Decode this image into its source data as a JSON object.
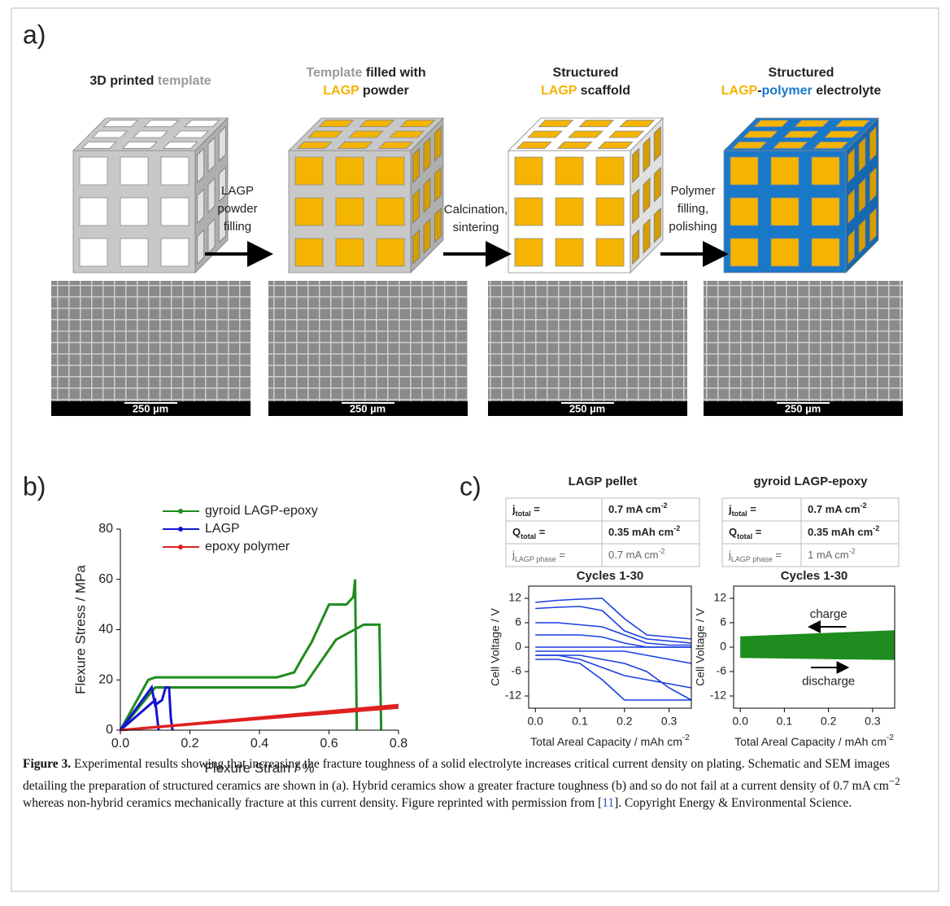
{
  "figure": {
    "panel_labels": [
      "a)",
      "b)",
      "c)"
    ],
    "steps": [
      {
        "title": [
          [
            {
              "text": "3D printed ",
              "color": "#222222"
            },
            {
              "text": "template",
              "color": "#9a9a9a"
            }
          ]
        ],
        "frame": "#c8c8c8",
        "window": "#ffffff",
        "scale_bar": "250 µm"
      },
      {
        "title": [
          [
            {
              "text": "Template",
              "color": "#9a9a9a"
            },
            {
              "text": " filled with",
              "color": "#222222"
            }
          ],
          [
            {
              "text": "LAGP",
              "color": "#f5b400"
            },
            {
              "text": " powder",
              "color": "#222222"
            }
          ]
        ],
        "frame": "#c8c8c8",
        "window": "#f5b400",
        "scale_bar": "250 µm"
      },
      {
        "title": [
          [
            {
              "text": "Structured",
              "color": "#222222"
            }
          ],
          [
            {
              "text": "LAGP",
              "color": "#f5b400"
            },
            {
              "text": " scaffold",
              "color": "#222222"
            }
          ]
        ],
        "frame": "#ffffff",
        "window": "#f5b400",
        "scale_bar": "250 µm"
      },
      {
        "title": [
          [
            {
              "text": "Structured",
              "color": "#222222"
            }
          ],
          [
            {
              "text": "LAGP",
              "color": "#f5b400"
            },
            {
              "text": "-",
              "color": "#222222"
            },
            {
              "text": "polymer",
              "color": "#1a78c8"
            },
            {
              "text": " electrolyte",
              "color": "#222222"
            }
          ]
        ],
        "frame": "#1a78c8",
        "window": "#f5b400",
        "scale_bar": "250 µm"
      }
    ],
    "arrows": [
      [
        "LAGP",
        "powder",
        "filling"
      ],
      [
        "Calcination,",
        "sintering"
      ],
      [
        "Polymer",
        "filling,",
        "polishing"
      ]
    ],
    "tables": [
      {
        "title": "LAGP pellet",
        "rows": [
          [
            {
              "main": "j",
              "sub": "total",
              "tail": " ="
            },
            {
              "main": "0.7 mA cm",
              "sup": "-2"
            }
          ],
          [
            {
              "main": "Q",
              "sub": "total",
              "tail": " ="
            },
            {
              "main": "0.35 mAh cm",
              "sup": "-2"
            }
          ],
          [
            {
              "main": "j",
              "sub": "LAGP phase",
              "tail": " ="
            },
            {
              "main": "0.7 mA cm",
              "sup": "-2"
            }
          ]
        ]
      },
      {
        "title": "gyroid LAGP-epoxy",
        "rows": [
          [
            {
              "main": "j",
              "sub": "total",
              "tail": " ="
            },
            {
              "main": "0.7 mA cm",
              "sup": "-2"
            }
          ],
          [
            {
              "main": "Q",
              "sub": "total",
              "tail": " ="
            },
            {
              "main": "0.35 mAh cm",
              "sup": "-2"
            }
          ],
          [
            {
              "main": "j",
              "sub": "LAGP phase",
              "tail": " ="
            },
            {
              "main": "1 mA cm",
              "sup": "-2"
            }
          ]
        ]
      }
    ],
    "caption": {
      "label": "Figure 3.",
      "text1": " Experimental results showing that increasing the fracture toughness of a solid electrolyte increases critical current density on plating. Schematic and SEM images detailing the preparation of structured ceramics are shown in (a). Hybrid ceramics show a greater fracture toughness (b) and so do not fail at a current density of 0.7 mA cm",
      "sup": "−2",
      "text2": " whereas non-hybrid ceramics mechanically fracture at this current density. Figure reprinted with permission from [",
      "ref": "11",
      "text3": "]. Copyright Energy & Environmental Science."
    }
  },
  "chart_data": [
    {
      "type": "line",
      "xlabel": "Flexure Strain / %",
      "ylabel": "Flexure Stress / MPa",
      "xlim": [
        0,
        0.8
      ],
      "ylim": [
        0,
        80
      ],
      "xticks": [
        {
          "value": 0,
          "label": "0.0"
        },
        {
          "value": 0.2,
          "label": "0.2"
        },
        {
          "value": 0.4,
          "label": "0.4"
        },
        {
          "value": 0.6,
          "label": "0.6"
        },
        {
          "value": 0.8,
          "label": "0.8"
        }
      ],
      "yticks": [
        0,
        20,
        40,
        60,
        80
      ],
      "legend": "upper-left",
      "series": [
        {
          "name": "gyroid LAGP-epoxy",
          "color": "#1e8c1e",
          "x": [
            0,
            0.08,
            0.1,
            0.45,
            0.5,
            0.52,
            0.55,
            0.6,
            0.65,
            0.67,
            0.675,
            0.68,
            null,
            0,
            0.1,
            0.5,
            0.53,
            0.58,
            0.62,
            0.7,
            0.745,
            0.75
          ],
          "values": [
            0,
            20,
            21,
            21,
            23,
            28,
            35,
            50,
            50,
            53,
            60,
            0,
            null,
            0,
            17,
            17,
            18,
            28,
            36,
            42,
            42,
            0
          ]
        },
        {
          "name": "LAGP",
          "color": "#1414d2",
          "x": [
            0,
            0.09,
            0.1,
            0.12,
            0.13,
            0.14,
            0.145,
            0.15,
            null,
            0,
            0.1,
            0.11
          ],
          "values": [
            0,
            17,
            10,
            12,
            17,
            17,
            5,
            0,
            null,
            0,
            12,
            0
          ]
        },
        {
          "name": "epoxy polymer",
          "color": "#e02020",
          "x": [
            0,
            0.8,
            null,
            0,
            0.8
          ],
          "values": [
            0,
            10,
            null,
            0,
            9
          ]
        }
      ]
    },
    {
      "type": "line",
      "title": "Cycles 1-30",
      "xlabel": "Total Areal Capacity / mAh cm",
      "xlabel_sup": "-2",
      "ylabel": "Cell Voltage / V",
      "xlim": [
        -0.015,
        0.35
      ],
      "ylim": [
        -15,
        15
      ],
      "xticks": [
        {
          "value": 0,
          "label": "0.0"
        },
        {
          "value": 0.1,
          "label": "0.1"
        },
        {
          "value": 0.2,
          "label": "0.2"
        },
        {
          "value": 0.3,
          "label": "0.3"
        }
      ],
      "yticks": [
        12,
        6,
        0,
        -6,
        -12
      ],
      "x": [
        0,
        0.05,
        0.1,
        0.15,
        0.2,
        0.25,
        0.3,
        0.35
      ],
      "series": [
        {
          "color": "#1a3fe0",
          "values": [
            11,
            11.5,
            11.8,
            12,
            7,
            3,
            2.5,
            2
          ]
        },
        {
          "color": "#1a3fe0",
          "values": [
            9.5,
            9.8,
            10,
            9,
            4,
            2,
            1.5,
            1
          ]
        },
        {
          "color": "#1a3fe0",
          "values": [
            6,
            6,
            5.5,
            5,
            3,
            1,
            0.5,
            0.5
          ]
        },
        {
          "color": "#1a3fe0",
          "values": [
            3,
            3,
            3,
            2.5,
            1,
            0,
            0,
            0
          ]
        },
        {
          "color": "#1a3fe0",
          "values": [
            0,
            0,
            0,
            0,
            0,
            0,
            0,
            0
          ]
        },
        {
          "color": "#1a3fe0",
          "values": [
            -1,
            -1,
            -1,
            -1,
            -1,
            -2,
            -3,
            -4
          ]
        },
        {
          "color": "#1a3fe0",
          "values": [
            -2,
            -2,
            -3,
            -5,
            -7,
            -8,
            -9,
            -10
          ]
        },
        {
          "color": "#1a3fe0",
          "values": [
            -3,
            -3,
            -4,
            -8,
            -13,
            -13,
            -13,
            -13
          ]
        },
        {
          "color": "#1a3fe0",
          "values": [
            -2,
            -2,
            -2,
            -3,
            -4,
            -6,
            -10,
            -13
          ]
        }
      ]
    },
    {
      "type": "band",
      "title": "Cycles 1-30",
      "xlabel": "Total Areal Capacity / mAh cm",
      "xlabel_sup": "-2",
      "ylabel": "Cell Voltage / V",
      "xlim": [
        -0.015,
        0.35
      ],
      "ylim": [
        -15,
        15
      ],
      "xticks": [
        {
          "value": 0,
          "label": "0.0"
        },
        {
          "value": 0.1,
          "label": "0.1"
        },
        {
          "value": 0.2,
          "label": "0.2"
        },
        {
          "value": 0.3,
          "label": "0.3"
        }
      ],
      "yticks": [
        12,
        6,
        0,
        -6,
        -12
      ],
      "x": [
        0,
        0.35
      ],
      "annotations": [
        "charge",
        "discharge"
      ],
      "series": [
        {
          "color": "#1e8c1e",
          "values": [
            2.5,
            4
          ]
        },
        {
          "color": "#1e8c1e",
          "values": [
            -2.5,
            -3
          ]
        }
      ]
    }
  ]
}
